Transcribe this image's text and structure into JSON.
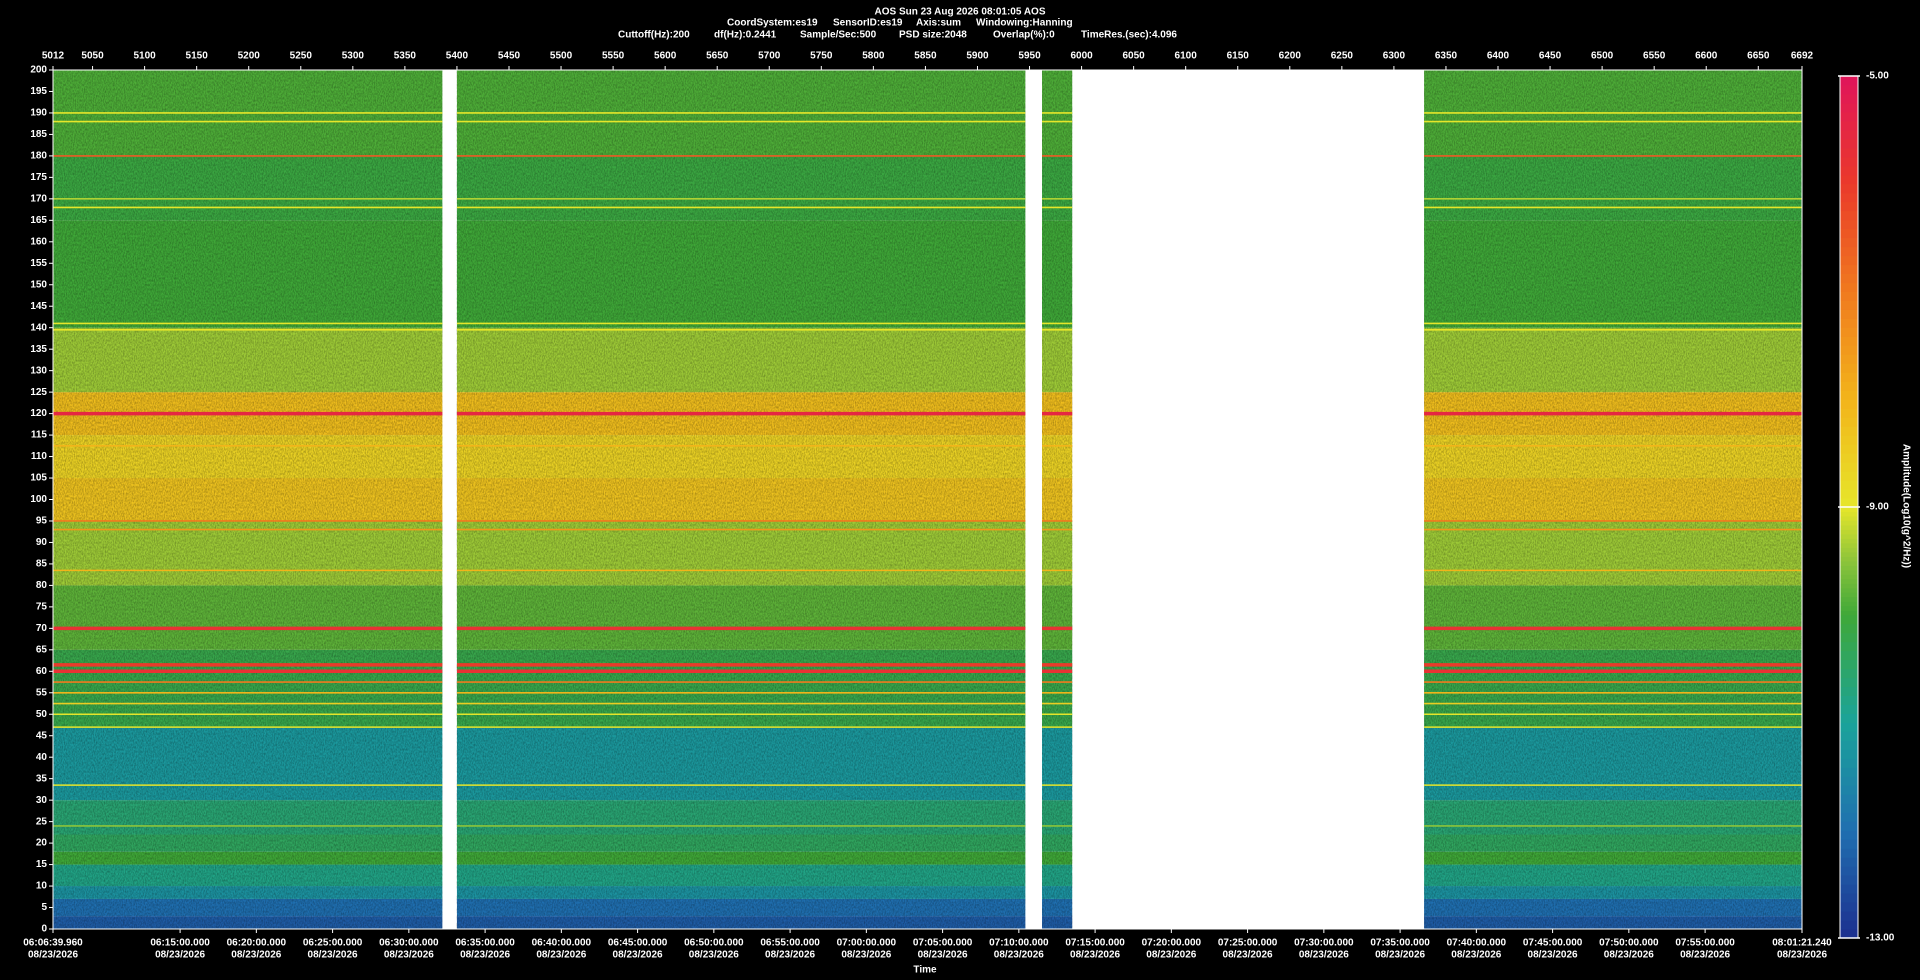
{
  "header": {
    "title": "AOS  Sun 23 Aug 2026 08:01:05  AOS",
    "info_line_1": [
      "CoordSystem:es19",
      "SensorID:es19",
      "Axis:sum",
      "Windowing:Hanning"
    ],
    "info_line_2": [
      "Cuttoff(Hz):200",
      "df(Hz):0.2441",
      "Sample/Sec:500",
      "PSD size:2048",
      "Overlap(%):0",
      "TimeRes.(sec):4.096"
    ]
  },
  "chart_data": {
    "type": "spectrogram",
    "xlim": [
      5012,
      6692
    ],
    "xticks": [
      5012,
      5050,
      5100,
      5150,
      5200,
      5250,
      5300,
      5350,
      5400,
      5450,
      5500,
      5550,
      5600,
      5650,
      5700,
      5750,
      5800,
      5850,
      5900,
      5950,
      6000,
      6050,
      6100,
      6150,
      6200,
      6250,
      6300,
      6350,
      6400,
      6450,
      6500,
      6550,
      6600,
      6650,
      6692
    ],
    "time_ticks": [
      {
        "value": 5012,
        "label": "06:06:39.960",
        "date": "08/23/2026"
      },
      {
        "value": 5134.08,
        "label": "06:15:00.000",
        "date": "08/23/2026"
      },
      {
        "value": 5207.32,
        "label": "06:20:00.000",
        "date": "08/23/2026"
      },
      {
        "value": 5280.56,
        "label": "06:25:00.000",
        "date": "08/23/2026"
      },
      {
        "value": 5353.81,
        "label": "06:30:00.000",
        "date": "08/23/2026"
      },
      {
        "value": 5427.05,
        "label": "06:35:00.000",
        "date": "08/23/2026"
      },
      {
        "value": 5500.29,
        "label": "06:40:00.000",
        "date": "08/23/2026"
      },
      {
        "value": 5573.53,
        "label": "06:45:00.000",
        "date": "08/23/2026"
      },
      {
        "value": 5646.77,
        "label": "06:50:00.000",
        "date": "08/23/2026"
      },
      {
        "value": 5720.01,
        "label": "06:55:00.000",
        "date": "08/23/2026"
      },
      {
        "value": 5793.26,
        "label": "07:00:00.000",
        "date": "08/23/2026"
      },
      {
        "value": 5866.5,
        "label": "07:05:00.000",
        "date": "08/23/2026"
      },
      {
        "value": 5939.74,
        "label": "07:10:00.000",
        "date": "08/23/2026"
      },
      {
        "value": 6012.98,
        "label": "07:15:00.000",
        "date": "08/23/2026"
      },
      {
        "value": 6086.22,
        "label": "07:20:00.000",
        "date": "08/23/2026"
      },
      {
        "value": 6159.46,
        "label": "07:25:00.000",
        "date": "08/23/2026"
      },
      {
        "value": 6232.71,
        "label": "07:30:00.000",
        "date": "08/23/2026"
      },
      {
        "value": 6305.95,
        "label": "07:35:00.000",
        "date": "08/23/2026"
      },
      {
        "value": 6379.19,
        "label": "07:40:00.000",
        "date": "08/23/2026"
      },
      {
        "value": 6452.43,
        "label": "07:45:00.000",
        "date": "08/23/2026"
      },
      {
        "value": 6525.67,
        "label": "07:50:00.000",
        "date": "08/23/2026"
      },
      {
        "value": 6598.92,
        "label": "07:55:00.000",
        "date": "08/23/2026"
      },
      {
        "value": 6692,
        "label": "08:01:21.240",
        "date": "08/23/2026"
      }
    ],
    "x_label": "Time",
    "ylim": [
      0,
      200
    ],
    "yticks": [
      0,
      5,
      10,
      15,
      20,
      25,
      30,
      35,
      40,
      45,
      50,
      55,
      60,
      65,
      70,
      75,
      80,
      85,
      90,
      95,
      100,
      105,
      110,
      115,
      120,
      125,
      130,
      135,
      140,
      145,
      150,
      155,
      160,
      165,
      170,
      175,
      180,
      185,
      190,
      195,
      200
    ],
    "segments": [
      [
        5012,
        5386
      ],
      [
        5400,
        5946
      ],
      [
        5962,
        5991
      ],
      [
        6329,
        6692
      ]
    ],
    "bands": [
      {
        "from": 0,
        "to": 3,
        "value": -12.3
      },
      {
        "from": 3,
        "to": 7,
        "value": -12
      },
      {
        "from": 7,
        "to": 10,
        "value": -11.3
      },
      {
        "from": 10,
        "to": 15,
        "value": -10.8
      },
      {
        "from": 15,
        "to": 18,
        "value": -10
      },
      {
        "from": 18,
        "to": 22,
        "value": -10.4
      },
      {
        "from": 22,
        "to": 30,
        "value": -10.6
      },
      {
        "from": 30,
        "to": 47,
        "value": -11.2
      },
      {
        "from": 47,
        "to": 65,
        "value": -10.2
      },
      {
        "from": 65,
        "to": 80,
        "value": -9.8
      },
      {
        "from": 80,
        "to": 95,
        "value": -9.4
      },
      {
        "from": 95,
        "to": 105,
        "value": -8.3
      },
      {
        "from": 105,
        "to": 115,
        "value": -8.6
      },
      {
        "from": 115,
        "to": 125,
        "value": -8.2
      },
      {
        "from": 125,
        "to": 140,
        "value": -9.4
      },
      {
        "from": 140,
        "to": 165,
        "value": -10
      },
      {
        "from": 165,
        "to": 180,
        "value": -10.1
      },
      {
        "from": 180,
        "to": 200,
        "value": -9.9
      }
    ],
    "lines": [
      {
        "freq": 190,
        "value": -9
      },
      {
        "freq": 188,
        "value": -9
      },
      {
        "freq": 180,
        "value": -6.5
      },
      {
        "freq": 170,
        "value": -9.3
      },
      {
        "freq": 168,
        "value": -9
      },
      {
        "freq": 141,
        "value": -9
      },
      {
        "freq": 139.5,
        "value": -9
      },
      {
        "freq": 120,
        "value": -5.5
      },
      {
        "freq": 112.5,
        "value": -8
      },
      {
        "freq": 95,
        "value": -7
      },
      {
        "freq": 93,
        "value": -7.5
      },
      {
        "freq": 83.5,
        "value": -8
      },
      {
        "freq": 70,
        "value": -5.8
      },
      {
        "freq": 61.5,
        "value": -6
      },
      {
        "freq": 60,
        "value": -5.8
      },
      {
        "freq": 57.5,
        "value": -7
      },
      {
        "freq": 55,
        "value": -8
      },
      {
        "freq": 52.5,
        "value": -8.5
      },
      {
        "freq": 50,
        "value": -9
      },
      {
        "freq": 47,
        "value": -9
      },
      {
        "freq": 33.5,
        "value": -9
      },
      {
        "freq": 24,
        "value": -9.5
      }
    ],
    "colorbar": {
      "label": "Amplitude(Log10(g^2/Hz))",
      "lim": [
        -13,
        -5
      ],
      "ticks": [
        {
          "value": -13,
          "label": "-13.00"
        },
        {
          "value": -9,
          "label": "-9.00"
        },
        {
          "value": -5,
          "label": "-5.00"
        }
      ],
      "colormap": [
        {
          "value": -13,
          "color": "#1c2f8f"
        },
        {
          "value": -12,
          "color": "#1f6fb0"
        },
        {
          "value": -11,
          "color": "#1aa39a"
        },
        {
          "value": -10,
          "color": "#3fa838"
        },
        {
          "value": -9.5,
          "color": "#8cc43a"
        },
        {
          "value": -9,
          "color": "#e6e62a"
        },
        {
          "value": -8,
          "color": "#f2b41a"
        },
        {
          "value": -7,
          "color": "#f07a1e"
        },
        {
          "value": -6,
          "color": "#ea3a2a"
        },
        {
          "value": -5,
          "color": "#e0145a"
        }
      ]
    }
  }
}
